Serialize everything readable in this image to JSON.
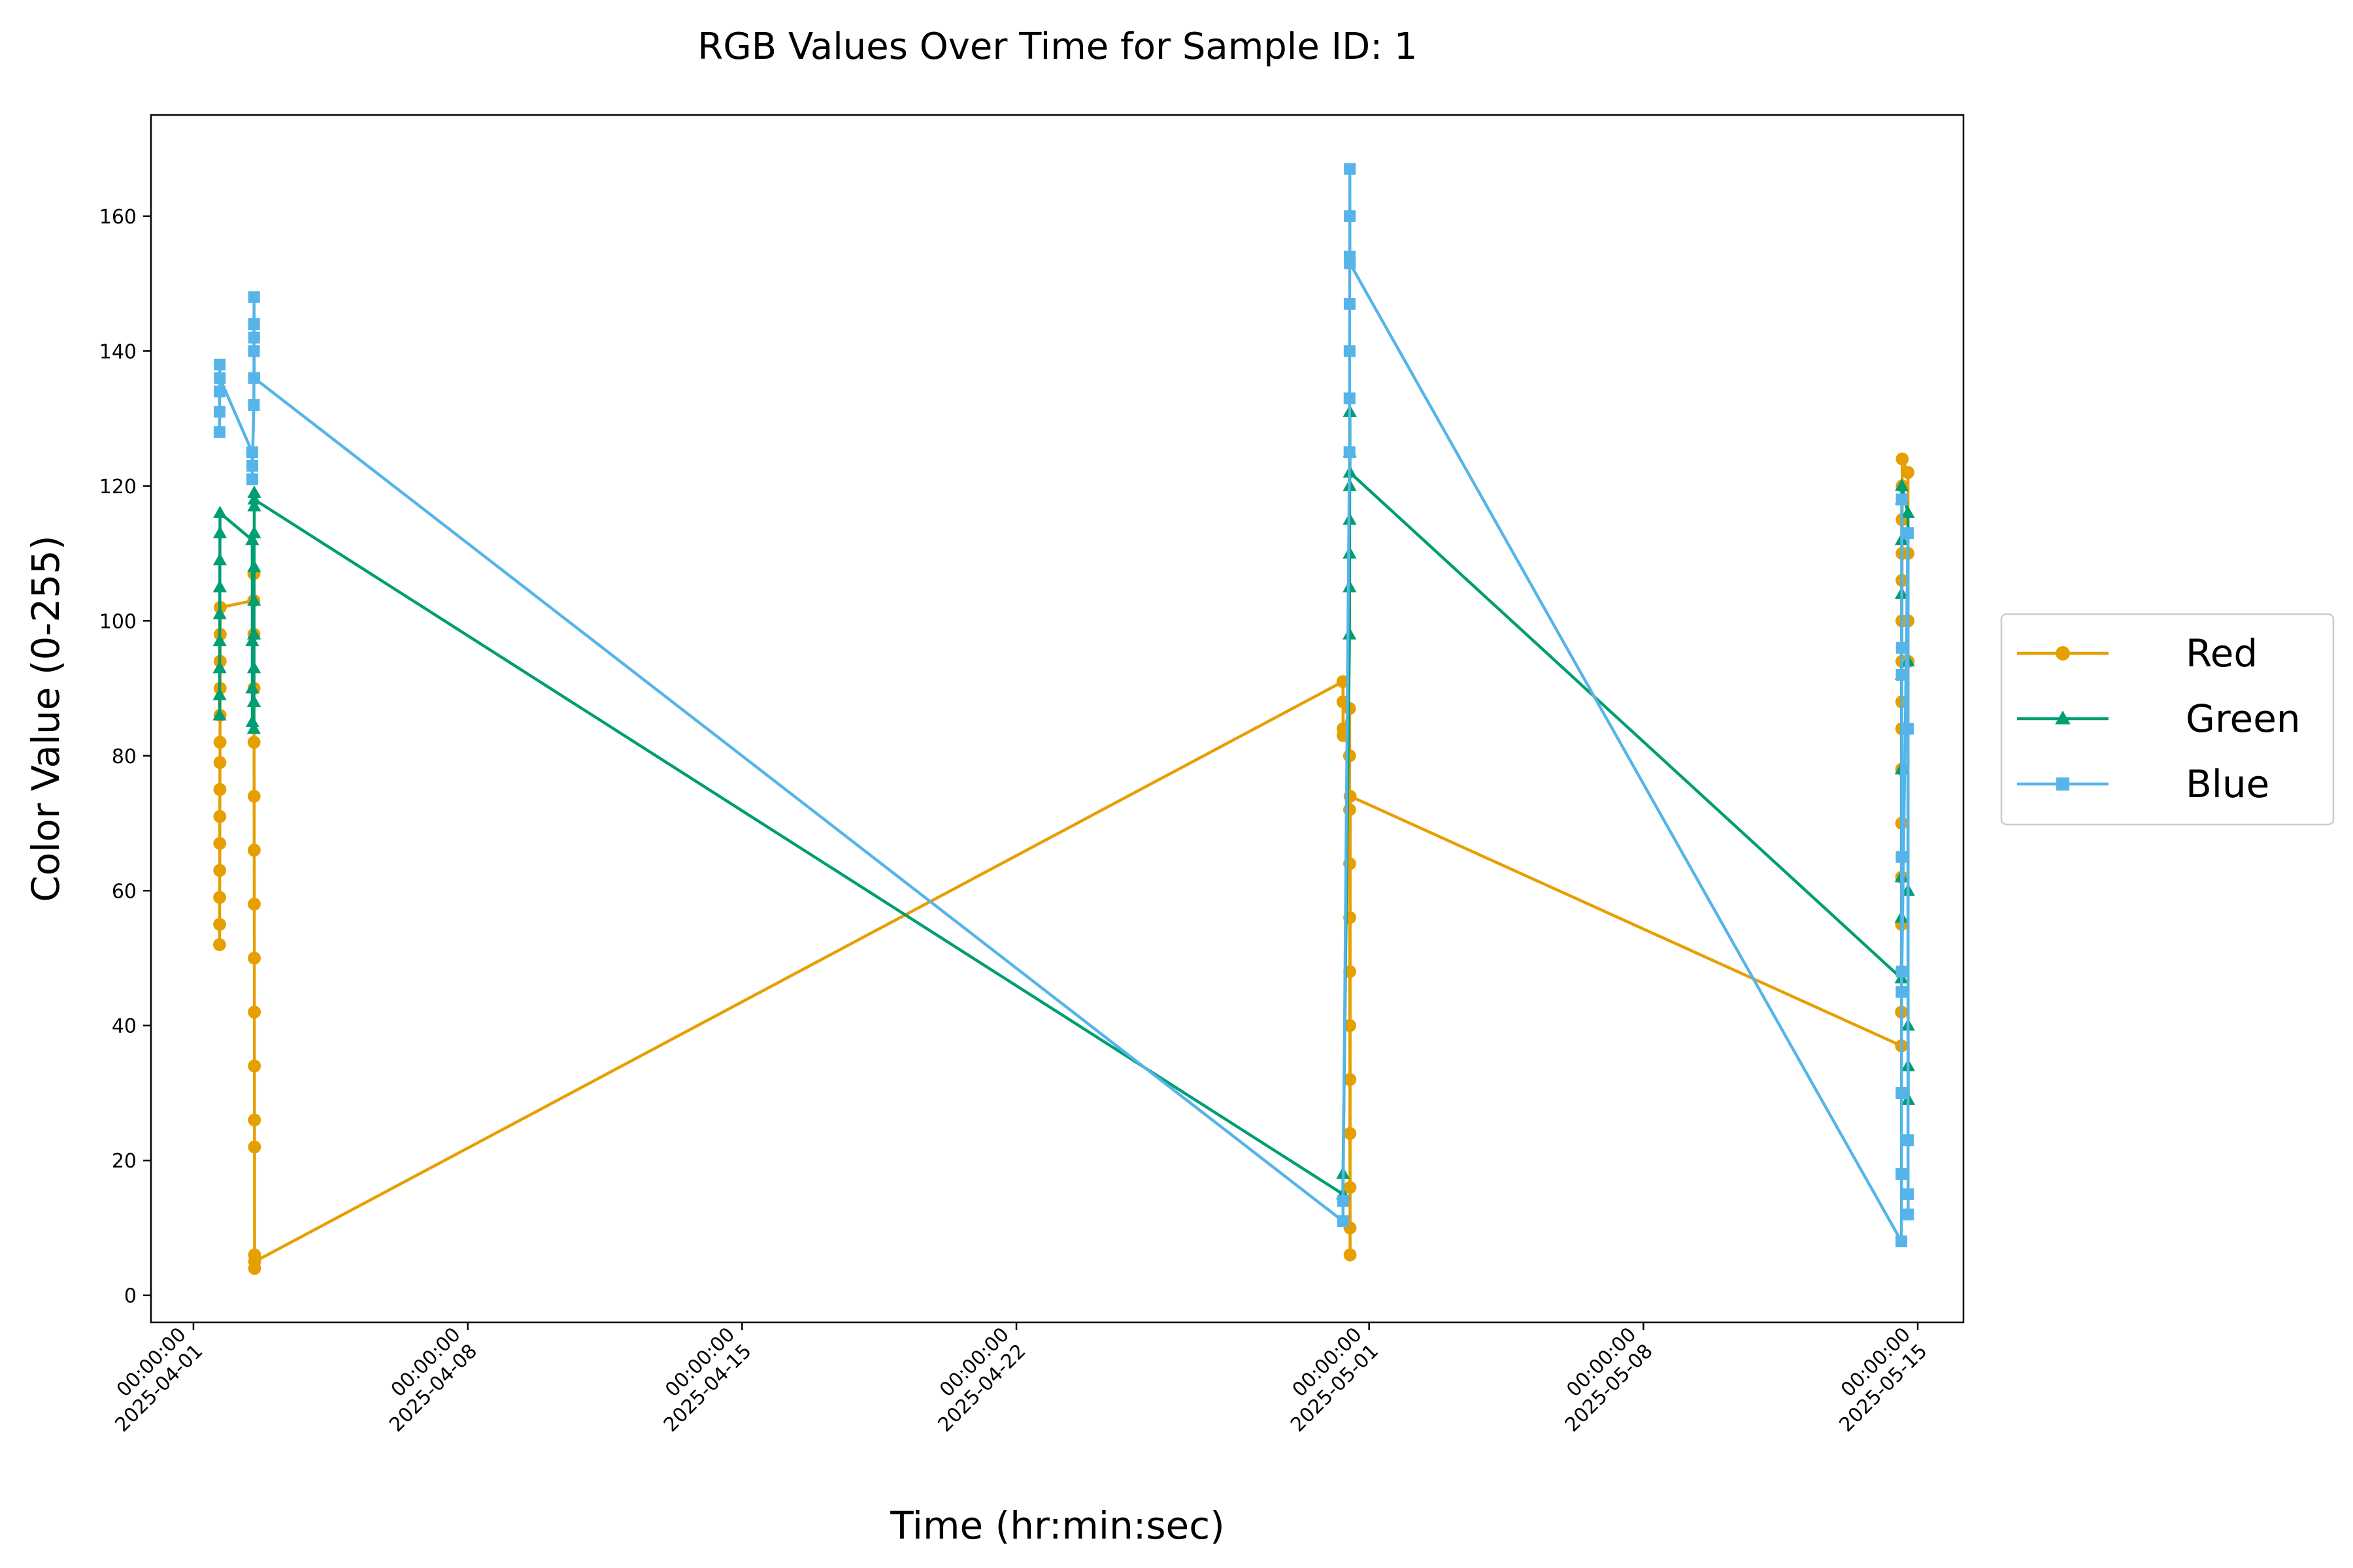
{
  "chart_data": {
    "type": "line",
    "title": "RGB Values Over Time for Sample ID: 1",
    "xlabel": "Time (hr:min:sec)",
    "ylabel": "Color Value (0-255)",
    "xlim": [
      "2025-03-30T22:00:00",
      "2025-05-16T04:00:00"
    ],
    "ylim": [
      -4,
      175
    ],
    "x_ticks": [
      {
        "date": "2025-04-01",
        "time": "00:00:00",
        "at": "2025-04-01T00:00:00"
      },
      {
        "date": "2025-04-08",
        "time": "00:00:00",
        "at": "2025-04-08T00:00:00"
      },
      {
        "date": "2025-04-15",
        "time": "00:00:00",
        "at": "2025-04-15T00:00:00"
      },
      {
        "date": "2025-04-22",
        "time": "00:00:00",
        "at": "2025-04-22T00:00:00"
      },
      {
        "date": "2025-05-01",
        "time": "00:00:00",
        "at": "2025-05-01T00:00:00"
      },
      {
        "date": "2025-05-08",
        "time": "00:00:00",
        "at": "2025-05-08T00:00:00"
      },
      {
        "date": "2025-05-15",
        "time": "00:00:00",
        "at": "2025-05-15T00:00:00"
      }
    ],
    "y_ticks": [
      0,
      20,
      40,
      60,
      80,
      100,
      120,
      140,
      160
    ],
    "grid": false,
    "legend_position": "right-outside",
    "series": [
      {
        "name": "Red",
        "color": "#E69F00",
        "marker": "circle",
        "points": [
          [
            "2025-04-01T16:00:00",
            52
          ],
          [
            "2025-04-01T16:02:00",
            55
          ],
          [
            "2025-04-01T16:04:00",
            59
          ],
          [
            "2025-04-01T16:06:00",
            63
          ],
          [
            "2025-04-01T16:08:00",
            67
          ],
          [
            "2025-04-01T16:10:00",
            71
          ],
          [
            "2025-04-01T16:12:00",
            75
          ],
          [
            "2025-04-01T16:14:00",
            79
          ],
          [
            "2025-04-01T16:16:00",
            82
          ],
          [
            "2025-04-01T16:18:00",
            86
          ],
          [
            "2025-04-01T16:20:00",
            90
          ],
          [
            "2025-04-01T16:22:00",
            94
          ],
          [
            "2025-04-01T16:24:00",
            98
          ],
          [
            "2025-04-01T16:26:00",
            102
          ],
          [
            "2025-04-02T13:00:00",
            103
          ],
          [
            "2025-04-02T13:02:00",
            107
          ],
          [
            "2025-04-02T13:04:00",
            98
          ],
          [
            "2025-04-02T13:06:00",
            90
          ],
          [
            "2025-04-02T13:08:00",
            82
          ],
          [
            "2025-04-02T13:10:00",
            74
          ],
          [
            "2025-04-02T13:12:00",
            66
          ],
          [
            "2025-04-02T13:14:00",
            58
          ],
          [
            "2025-04-02T13:16:00",
            50
          ],
          [
            "2025-04-02T13:18:00",
            42
          ],
          [
            "2025-04-02T13:20:00",
            34
          ],
          [
            "2025-04-02T13:22:00",
            26
          ],
          [
            "2025-04-02T13:24:00",
            22
          ],
          [
            "2025-04-02T13:26:00",
            6
          ],
          [
            "2025-04-02T13:28:00",
            4
          ],
          [
            "2025-04-02T13:30:00",
            5
          ],
          [
            "2025-04-30T08:00:00",
            91
          ],
          [
            "2025-04-30T08:02:00",
            88
          ],
          [
            "2025-04-30T08:04:00",
            84
          ],
          [
            "2025-04-30T08:06:00",
            83
          ],
          [
            "2025-04-30T12:00:00",
            87
          ],
          [
            "2025-04-30T12:02:00",
            80
          ],
          [
            "2025-04-30T12:04:00",
            72
          ],
          [
            "2025-04-30T12:06:00",
            64
          ],
          [
            "2025-04-30T12:08:00",
            56
          ],
          [
            "2025-04-30T12:10:00",
            48
          ],
          [
            "2025-04-30T12:12:00",
            40
          ],
          [
            "2025-04-30T12:14:00",
            32
          ],
          [
            "2025-04-30T12:16:00",
            24
          ],
          [
            "2025-04-30T12:18:00",
            16
          ],
          [
            "2025-04-30T12:20:00",
            10
          ],
          [
            "2025-04-30T12:22:00",
            6
          ],
          [
            "2025-04-30T12:24:00",
            74
          ],
          [
            "2025-05-14T14:00:00",
            37
          ],
          [
            "2025-05-14T14:02:00",
            42
          ],
          [
            "2025-05-14T14:04:00",
            48
          ],
          [
            "2025-05-14T14:06:00",
            55
          ],
          [
            "2025-05-14T14:08:00",
            62
          ],
          [
            "2025-05-14T14:10:00",
            70
          ],
          [
            "2025-05-14T14:12:00",
            78
          ],
          [
            "2025-05-14T14:14:00",
            84
          ],
          [
            "2025-05-14T14:16:00",
            88
          ],
          [
            "2025-05-14T14:18:00",
            94
          ],
          [
            "2025-05-14T14:20:00",
            100
          ],
          [
            "2025-05-14T14:22:00",
            106
          ],
          [
            "2025-05-14T14:24:00",
            110
          ],
          [
            "2025-05-14T14:26:00",
            115
          ],
          [
            "2025-05-14T14:28:00",
            120
          ],
          [
            "2025-05-14T14:30:00",
            124
          ],
          [
            "2025-05-14T18:00:00",
            122
          ],
          [
            "2025-05-14T18:02:00",
            110
          ],
          [
            "2025-05-14T18:04:00",
            100
          ],
          [
            "2025-05-14T18:06:00",
            94
          ]
        ]
      },
      {
        "name": "Green",
        "color": "#009E73",
        "marker": "triangle",
        "points": [
          [
            "2025-04-01T16:00:00",
            86
          ],
          [
            "2025-04-01T16:02:00",
            89
          ],
          [
            "2025-04-01T16:04:00",
            93
          ],
          [
            "2025-04-01T16:06:00",
            97
          ],
          [
            "2025-04-01T16:08:00",
            101
          ],
          [
            "2025-04-01T16:10:00",
            105
          ],
          [
            "2025-04-01T16:12:00",
            109
          ],
          [
            "2025-04-01T16:14:00",
            113
          ],
          [
            "2025-04-01T16:16:00",
            116
          ],
          [
            "2025-04-02T12:00:00",
            112
          ],
          [
            "2025-04-02T12:02:00",
            97
          ],
          [
            "2025-04-02T12:04:00",
            90
          ],
          [
            "2025-04-02T12:06:00",
            85
          ],
          [
            "2025-04-02T13:00:00",
            84
          ],
          [
            "2025-04-02T13:02:00",
            88
          ],
          [
            "2025-04-02T13:04:00",
            93
          ],
          [
            "2025-04-02T13:06:00",
            98
          ],
          [
            "2025-04-02T13:08:00",
            103
          ],
          [
            "2025-04-02T13:10:00",
            108
          ],
          [
            "2025-04-02T13:12:00",
            113
          ],
          [
            "2025-04-02T13:14:00",
            117
          ],
          [
            "2025-04-02T13:16:00",
            119
          ],
          [
            "2025-04-02T13:18:00",
            118
          ],
          [
            "2025-04-30T08:00:00",
            15
          ],
          [
            "2025-04-30T08:02:00",
            18
          ],
          [
            "2025-04-30T12:00:00",
            98
          ],
          [
            "2025-04-30T12:02:00",
            105
          ],
          [
            "2025-04-30T12:04:00",
            110
          ],
          [
            "2025-04-30T12:06:00",
            115
          ],
          [
            "2025-04-30T12:08:00",
            120
          ],
          [
            "2025-04-30T12:10:00",
            125
          ],
          [
            "2025-04-30T12:12:00",
            131
          ],
          [
            "2025-04-30T12:14:00",
            122
          ],
          [
            "2025-05-14T14:00:00",
            47
          ],
          [
            "2025-05-14T14:02:00",
            56
          ],
          [
            "2025-05-14T14:04:00",
            62
          ],
          [
            "2025-05-14T14:06:00",
            78
          ],
          [
            "2025-05-14T14:08:00",
            92
          ],
          [
            "2025-05-14T14:10:00",
            104
          ],
          [
            "2025-05-14T14:12:00",
            112
          ],
          [
            "2025-05-14T14:14:00",
            118
          ],
          [
            "2025-05-14T14:16:00",
            120
          ],
          [
            "2025-05-14T18:00:00",
            116
          ],
          [
            "2025-05-14T18:02:00",
            94
          ],
          [
            "2025-05-14T18:04:00",
            60
          ],
          [
            "2025-05-14T18:06:00",
            40
          ],
          [
            "2025-05-14T18:08:00",
            34
          ],
          [
            "2025-05-14T18:10:00",
            29
          ]
        ]
      },
      {
        "name": "Blue",
        "color": "#56B4E9",
        "marker": "square",
        "points": [
          [
            "2025-04-01T16:00:00",
            128
          ],
          [
            "2025-04-01T16:02:00",
            131
          ],
          [
            "2025-04-01T16:04:00",
            134
          ],
          [
            "2025-04-01T16:06:00",
            138
          ],
          [
            "2025-04-01T16:08:00",
            136
          ],
          [
            "2025-04-02T12:00:00",
            125
          ],
          [
            "2025-04-02T12:02:00",
            121
          ],
          [
            "2025-04-02T12:04:00",
            123
          ],
          [
            "2025-04-02T13:00:00",
            132
          ],
          [
            "2025-04-02T13:02:00",
            136
          ],
          [
            "2025-04-02T13:04:00",
            140
          ],
          [
            "2025-04-02T13:06:00",
            144
          ],
          [
            "2025-04-02T13:08:00",
            148
          ],
          [
            "2025-04-02T13:10:00",
            142
          ],
          [
            "2025-04-02T13:12:00",
            136
          ],
          [
            "2025-04-30T08:00:00",
            11
          ],
          [
            "2025-04-30T08:02:00",
            14
          ],
          [
            "2025-04-30T12:00:00",
            125
          ],
          [
            "2025-04-30T12:02:00",
            133
          ],
          [
            "2025-04-30T12:04:00",
            140
          ],
          [
            "2025-04-30T12:06:00",
            147
          ],
          [
            "2025-04-30T12:08:00",
            154
          ],
          [
            "2025-04-30T12:10:00",
            160
          ],
          [
            "2025-04-30T12:12:00",
            167
          ],
          [
            "2025-04-30T12:14:00",
            153
          ],
          [
            "2025-05-14T14:00:00",
            8
          ],
          [
            "2025-05-14T14:02:00",
            18
          ],
          [
            "2025-05-14T14:04:00",
            30
          ],
          [
            "2025-05-14T14:06:00",
            45
          ],
          [
            "2025-05-14T14:08:00",
            65
          ],
          [
            "2025-05-14T14:10:00",
            92
          ],
          [
            "2025-05-14T14:12:00",
            118
          ],
          [
            "2025-05-14T14:14:00",
            96
          ],
          [
            "2025-05-14T14:16:00",
            48
          ],
          [
            "2025-05-14T18:00:00",
            113
          ],
          [
            "2025-05-14T18:02:00",
            84
          ],
          [
            "2025-05-14T18:04:00",
            23
          ],
          [
            "2025-05-14T18:06:00",
            15
          ],
          [
            "2025-05-14T18:08:00",
            12
          ]
        ]
      }
    ]
  }
}
